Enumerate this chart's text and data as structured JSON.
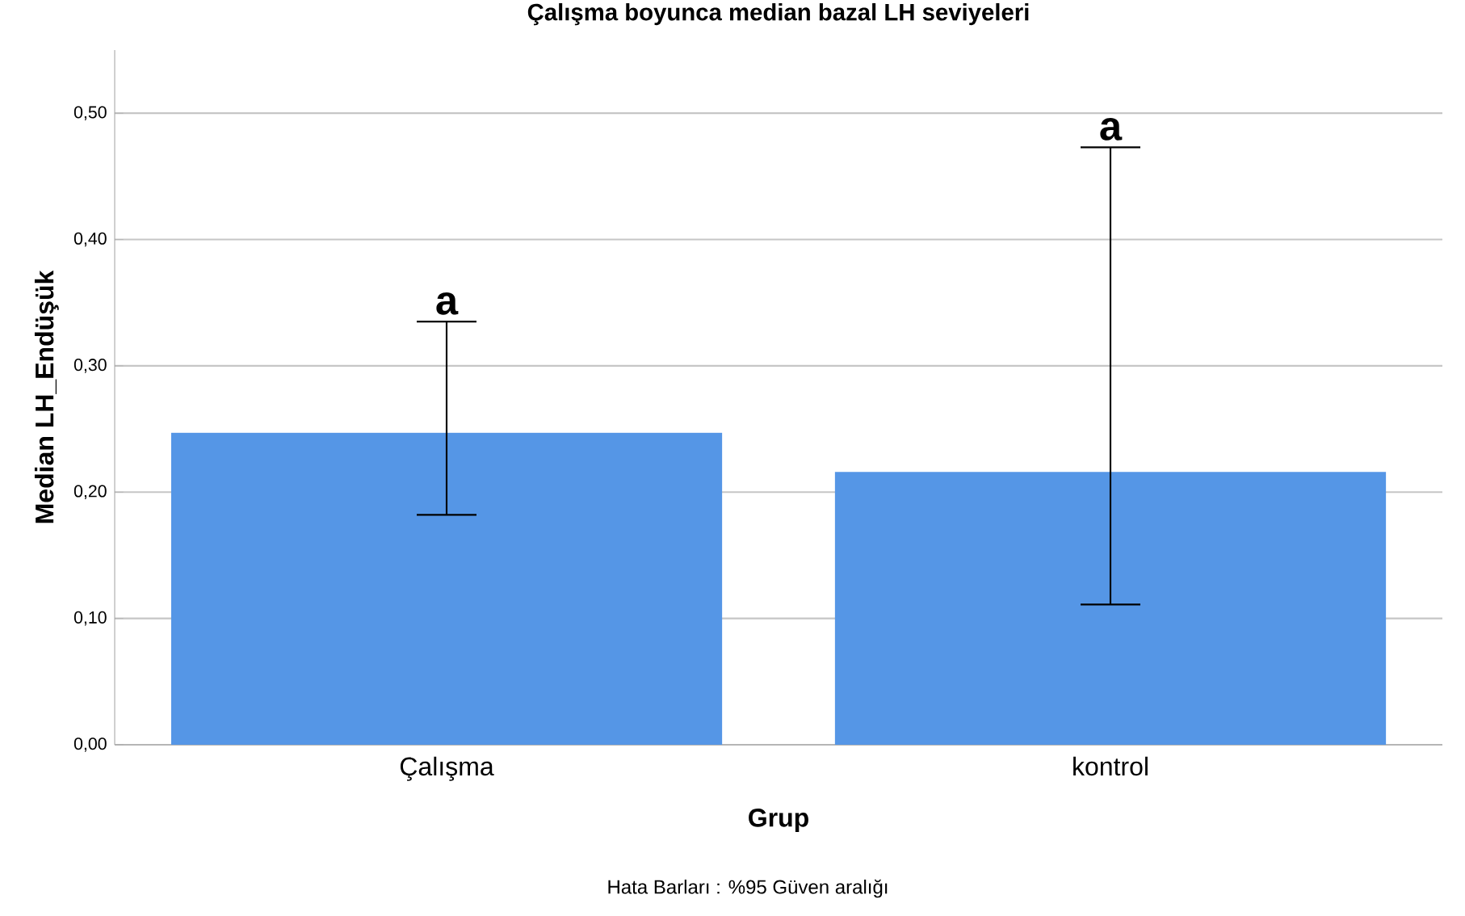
{
  "chart_data": {
    "type": "bar",
    "title": "Çalışma boyunca median bazal LH seviyeleri",
    "xlabel": "Grup",
    "ylabel": "Median LH_Endüşük",
    "categories": [
      "Çalışma",
      "kontrol"
    ],
    "values": [
      0.247,
      0.216
    ],
    "errors": [
      [
        0.182,
        0.335
      ],
      [
        0.111,
        0.473
      ]
    ],
    "color": "#5596e6",
    "ylim": [
      0,
      0.55
    ],
    "yticks": [
      {
        "value": 0,
        "label": "0,00"
      },
      {
        "value": 0.1,
        "label": "0,10"
      },
      {
        "value": 0.2,
        "label": "0,20"
      },
      {
        "value": 0.3,
        "label": "0,30"
      },
      {
        "value": 0.4,
        "label": "0,40"
      },
      {
        "value": 0.5,
        "label": "0,50"
      }
    ],
    "grid": "y",
    "annotations": [
      {
        "text": "a",
        "x": "Çalışma",
        "y": 0.335
      },
      {
        "text": "a",
        "x": "kontrol",
        "y": 0.473
      },
      "Hata Barları : %95 Güven aralığı"
    ]
  }
}
